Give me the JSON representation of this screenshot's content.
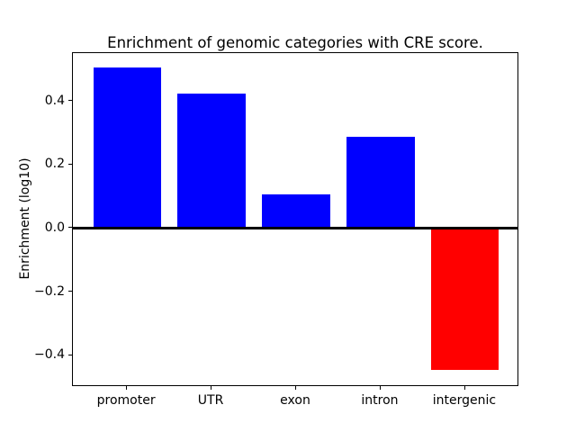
{
  "chart_data": {
    "type": "bar",
    "title": "Enrichment of genomic categories with CRE score.",
    "xlabel": "",
    "ylabel": "Enrichment (log10)",
    "categories": [
      "promoter",
      "UTR",
      "exon",
      "intron",
      "intergenic"
    ],
    "values": [
      0.505,
      0.422,
      0.105,
      0.287,
      -0.445
    ],
    "bar_colors": [
      "#0000ff",
      "#0000ff",
      "#0000ff",
      "#0000ff",
      "#ff0000"
    ],
    "positive_color": "#0000ff",
    "negative_color": "#ff0000",
    "ylim": [
      -0.5,
      0.55
    ],
    "yticks": [
      {
        "label": "0.4",
        "value": 0.4
      },
      {
        "label": "0.2",
        "value": 0.2
      },
      {
        "label": "0.0",
        "value": 0.0
      },
      {
        "label": "−0.2",
        "value": -0.2
      },
      {
        "label": "−0.4",
        "value": -0.4
      }
    ],
    "grid": false,
    "legend": null,
    "zero_line": true,
    "background": "#ffffff"
  }
}
